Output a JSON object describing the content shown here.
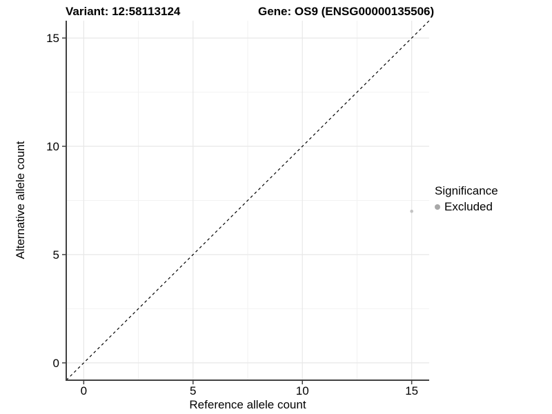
{
  "chart_data": {
    "type": "scatter",
    "titles": {
      "left": "Variant: 12:58113124",
      "right": "Gene: OS9 (ENSG00000135506)"
    },
    "xlabel": "Reference allele count",
    "ylabel": "Alternative allele count",
    "xlim": [
      -0.8,
      15.8
    ],
    "ylim": [
      -0.8,
      15.8
    ],
    "xticks": [
      0,
      5,
      10,
      15
    ],
    "yticks": [
      0,
      5,
      10,
      15
    ],
    "xminor": [
      2.5,
      7.5,
      12.5
    ],
    "yminor": [
      2.5,
      7.5,
      12.5
    ],
    "grid": "major+minor",
    "reference_line": {
      "type": "identity",
      "style": "dashed",
      "color": "#000000"
    },
    "legend": {
      "title": "Significance",
      "position": "right",
      "entries": [
        {
          "label": "Excluded",
          "marker_color": "#a8a8a8"
        }
      ]
    },
    "series": [
      {
        "name": "Excluded",
        "color": "#c3c3c3",
        "marker": "circle",
        "points": [
          {
            "x": 15,
            "y": 7
          }
        ]
      }
    ],
    "colors": {
      "axis_line": "#404040",
      "tick_label": "#000000",
      "grid_major": "#e7e7e7",
      "grid_minor": "#f2f2f2",
      "background": "#ffffff"
    }
  }
}
